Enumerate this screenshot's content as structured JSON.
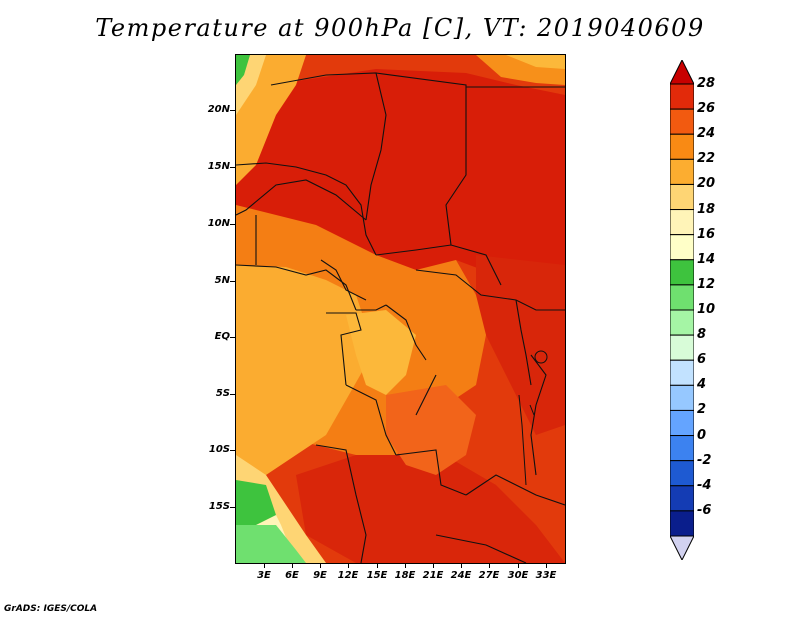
{
  "title": "Temperature at 900hPa [C], VT: 2019040609",
  "footer": "GrADS: IGES/COLA",
  "map": {
    "lat_labels": [
      "20N",
      "15N",
      "10N",
      "5N",
      "EQ",
      "5S",
      "10S",
      "15S"
    ],
    "lon_labels": [
      "3E",
      "6E",
      "9E",
      "12E",
      "15E",
      "18E",
      "21E",
      "24E",
      "27E",
      "30E",
      "33E"
    ]
  },
  "colorbar": {
    "levels": [
      "28",
      "26",
      "24",
      "22",
      "20",
      "18",
      "16",
      "14",
      "12",
      "10",
      "8",
      "6",
      "4",
      "2",
      "0",
      "-2",
      "-4",
      "-6"
    ],
    "colors": [
      "#c80000",
      "#e22a0a",
      "#f25a10",
      "#f98a14",
      "#fcad30",
      "#fed574",
      "#fff4b8",
      "#ffffc8",
      "#3ec33e",
      "#6fe06f",
      "#a5f5a5",
      "#d8fcd8",
      "#c2e2ff",
      "#96c8ff",
      "#64a4ff",
      "#3c82f0",
      "#1e5ad2",
      "#143cb4",
      "#0a1e8c",
      "#d2d2f0"
    ]
  }
}
